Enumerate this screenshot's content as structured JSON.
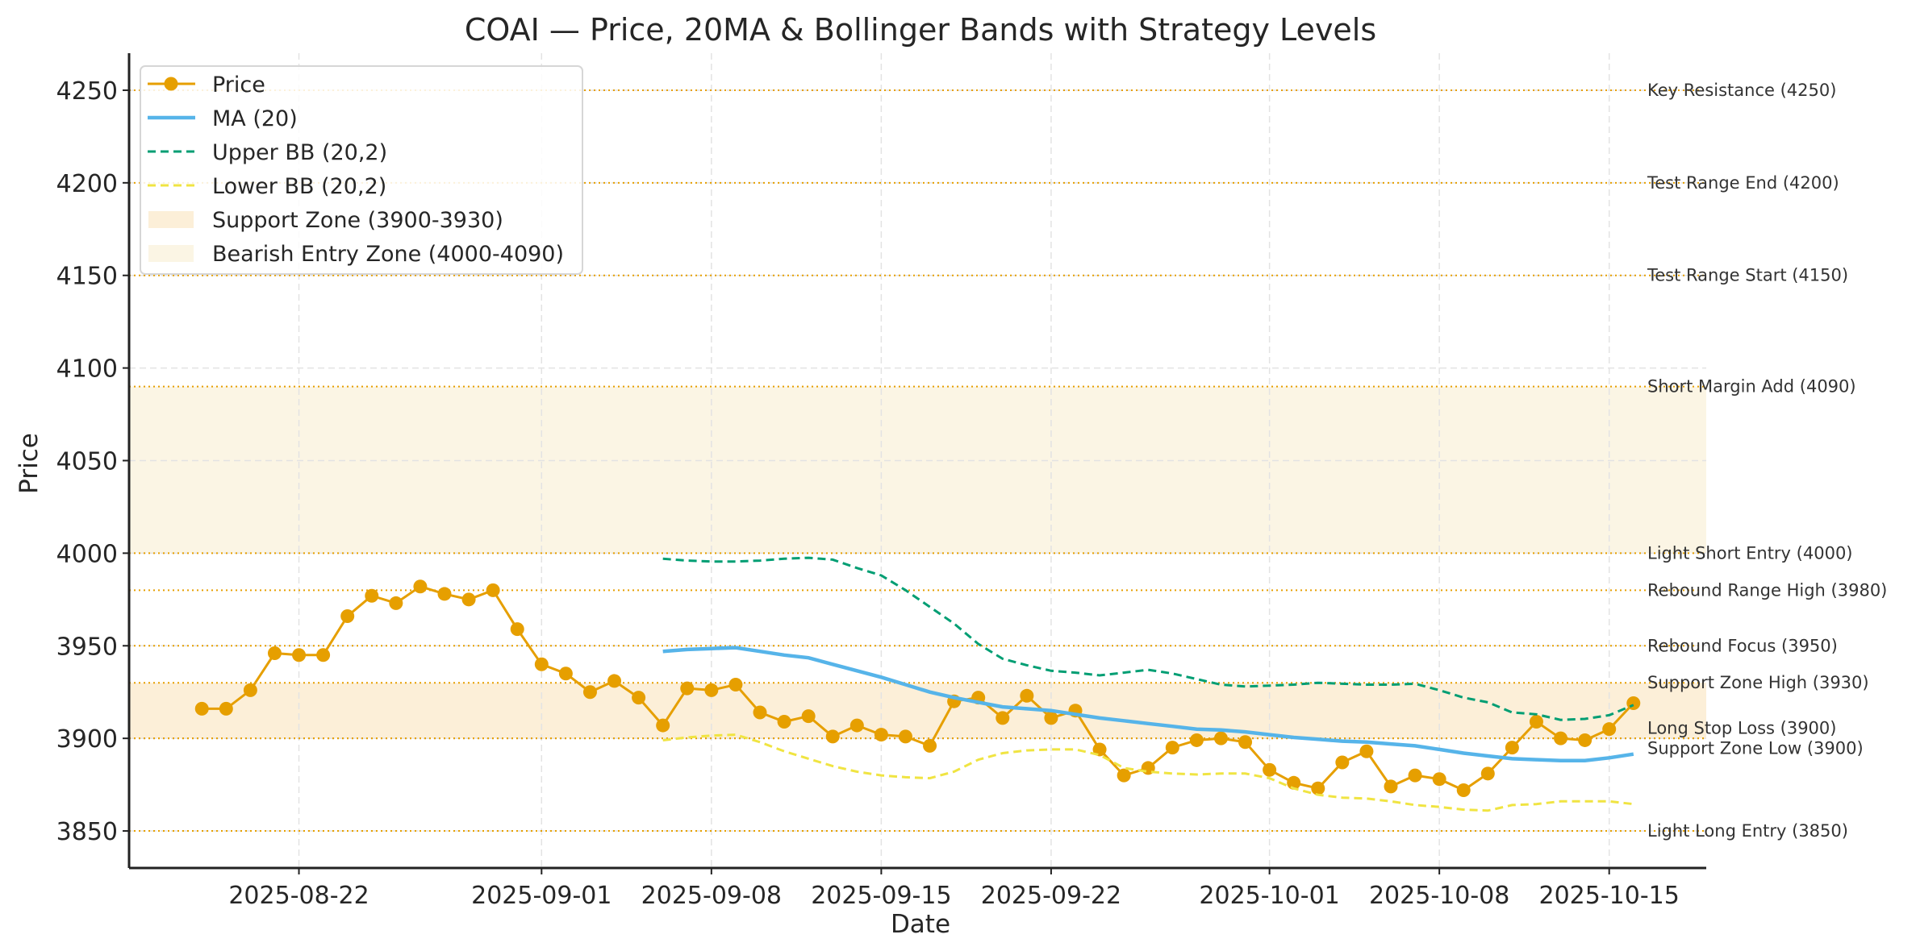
{
  "chart_data": {
    "type": "line",
    "title": "COAI — Price, 20MA & Bollinger Bands with Strategy Levels",
    "xlabel": "Date",
    "ylabel": "Price",
    "ylim": [
      3830,
      4270
    ],
    "xlim": [
      "2025-08-15",
      "2025-10-19"
    ],
    "grid": true,
    "legend_position": "top-left",
    "y_ticks": [
      3850,
      3900,
      3950,
      4000,
      4050,
      4100,
      4150,
      4200,
      4250
    ],
    "x_ticks": [
      "2025-08-22",
      "2025-09-01",
      "2025-09-08",
      "2025-09-15",
      "2025-09-22",
      "2025-10-01",
      "2025-10-08",
      "2025-10-15"
    ],
    "x": [
      "2025-08-18",
      "2025-08-19",
      "2025-08-20",
      "2025-08-21",
      "2025-08-22",
      "2025-08-23",
      "2025-08-24",
      "2025-08-25",
      "2025-08-26",
      "2025-08-27",
      "2025-08-28",
      "2025-08-29",
      "2025-08-30",
      "2025-08-31",
      "2025-09-01",
      "2025-09-02",
      "2025-09-03",
      "2025-09-04",
      "2025-09-05",
      "2025-09-06",
      "2025-09-07",
      "2025-09-08",
      "2025-09-09",
      "2025-09-10",
      "2025-09-11",
      "2025-09-12",
      "2025-09-13",
      "2025-09-14",
      "2025-09-15",
      "2025-09-16",
      "2025-09-17",
      "2025-09-18",
      "2025-09-19",
      "2025-09-20",
      "2025-09-21",
      "2025-09-22",
      "2025-09-23",
      "2025-09-24",
      "2025-09-25",
      "2025-09-26",
      "2025-09-27",
      "2025-09-28",
      "2025-09-29",
      "2025-09-30",
      "2025-10-01",
      "2025-10-02",
      "2025-10-03",
      "2025-10-04",
      "2025-10-05",
      "2025-10-06",
      "2025-10-07",
      "2025-10-08",
      "2025-10-09",
      "2025-10-10",
      "2025-10-11",
      "2025-10-12",
      "2025-10-13",
      "2025-10-14",
      "2025-10-15",
      "2025-10-16"
    ],
    "series": [
      {
        "name": "Price",
        "color": "#E69F00",
        "style": "solid-marker",
        "values": [
          3916,
          3916,
          3926,
          3946,
          3945,
          3945,
          3966,
          3977,
          3973,
          3982,
          3978,
          3975,
          3980,
          3959,
          3940,
          3935,
          3925,
          3931,
          3922,
          3907,
          3927,
          3926,
          3929,
          3914,
          3909,
          3912,
          3901,
          3907,
          3902,
          3901,
          3896,
          3920,
          3922,
          3911,
          3923,
          3911,
          3915,
          3894,
          3880,
          3884,
          3895,
          3899,
          3900,
          3898,
          3883,
          3876,
          3873,
          3887,
          3893,
          3874,
          3880,
          3878,
          3872,
          3881,
          3895,
          3909,
          3900,
          3899,
          3905,
          3919
        ]
      },
      {
        "name": "MA (20)",
        "color": "#56B4E9",
        "style": "solid",
        "values": [
          null,
          null,
          null,
          null,
          null,
          null,
          null,
          null,
          null,
          null,
          null,
          null,
          null,
          null,
          null,
          null,
          null,
          null,
          null,
          3947,
          3948,
          3948.5,
          3949,
          3947,
          3945,
          3943.5,
          3940,
          3936.5,
          3933,
          3929,
          3925,
          3922,
          3919.5,
          3917,
          3916,
          3915,
          3913,
          3911,
          3909.5,
          3908,
          3906.5,
          3905,
          3904.5,
          3903.5,
          3902,
          3900.5,
          3899.5,
          3898.5,
          3898,
          3897,
          3896,
          3894,
          3892,
          3890.5,
          3889,
          3888.5,
          3888,
          3888,
          3889.5,
          3891.5
        ]
      },
      {
        "name": "Upper BB (20,2)",
        "color": "#009E73",
        "style": "dashed",
        "values": [
          null,
          null,
          null,
          null,
          null,
          null,
          null,
          null,
          null,
          null,
          null,
          null,
          null,
          null,
          null,
          null,
          null,
          null,
          null,
          3997,
          3996,
          3995.5,
          3995.5,
          3996,
          3997,
          3997.5,
          3996.5,
          3992,
          3988,
          3980,
          3971,
          3962,
          3951,
          3943,
          3939.5,
          3936.5,
          3935.5,
          3934,
          3935.5,
          3937,
          3935,
          3932,
          3929,
          3928,
          3928.5,
          3929,
          3930,
          3929.5,
          3929,
          3929,
          3929.5,
          3926,
          3922,
          3919.5,
          3914,
          3913,
          3910,
          3910.5,
          3912.5,
          3918
        ]
      },
      {
        "name": "Lower BB (20,2)",
        "color": "#F0E442",
        "style": "dashed",
        "values": [
          null,
          null,
          null,
          null,
          null,
          null,
          null,
          null,
          null,
          null,
          null,
          null,
          null,
          null,
          null,
          null,
          null,
          null,
          null,
          3899,
          3900.5,
          3901.5,
          3902,
          3898,
          3893,
          3889,
          3885,
          3882,
          3880,
          3879,
          3878.5,
          3882,
          3888.5,
          3892,
          3893.5,
          3894,
          3894,
          3891,
          3884,
          3882,
          3881,
          3880.5,
          3881,
          3881,
          3878.5,
          3873,
          3869.5,
          3868,
          3867.5,
          3866,
          3864,
          3863,
          3861.5,
          3861,
          3864,
          3864.5,
          3866,
          3866,
          3866,
          3864.5
        ]
      }
    ],
    "zones": [
      {
        "name": "Support Zone (3900-3930)",
        "low": 3900,
        "high": 3930,
        "color": "#FCEFD8"
      },
      {
        "name": "Bearish Entry Zone (4000-4090)",
        "low": 4000,
        "high": 4090,
        "color": "#FBF5E4"
      }
    ],
    "levels": [
      {
        "label": "Key Resistance (4250)",
        "value": 4250
      },
      {
        "label": "Test Range End (4200)",
        "value": 4200
      },
      {
        "label": "Test Range Start (4150)",
        "value": 4150
      },
      {
        "label": "Short Margin Add (4090)",
        "value": 4090
      },
      {
        "label": "Light Short Entry (4000)",
        "value": 4000
      },
      {
        "label": "Rebound Range High (3980)",
        "value": 3980
      },
      {
        "label": "Rebound Focus (3950)",
        "value": 3950
      },
      {
        "label": "Support Zone High (3930)",
        "value": 3930
      },
      {
        "label": "Long Stop Loss (3900)",
        "value": 3900
      },
      {
        "label": "Support Zone Low (3900)",
        "value": 3900
      },
      {
        "label": "Light Long Entry (3850)",
        "value": 3850
      }
    ],
    "level_line_color": "#E69F00",
    "legend": [
      "Price",
      "MA (20)",
      "Upper BB (20,2)",
      "Lower BB (20,2)",
      "Support Zone (3900-3930)",
      "Bearish Entry Zone (4000-4090)"
    ]
  }
}
